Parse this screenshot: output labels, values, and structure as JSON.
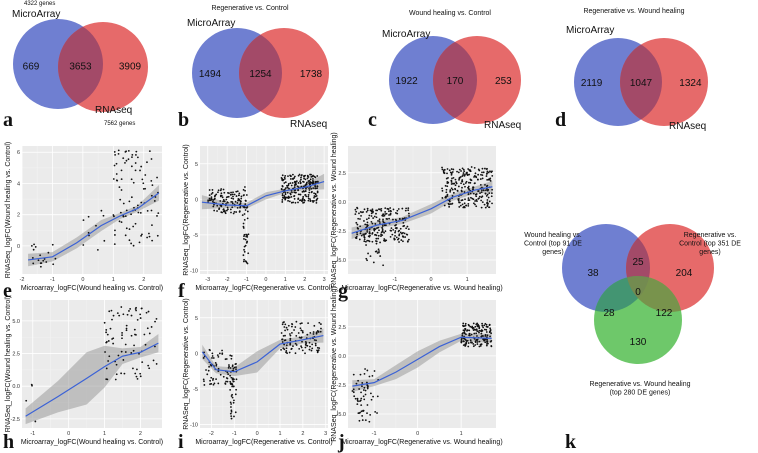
{
  "colors": {
    "microarray": "#6f7fd1",
    "rnaseq": "#e66a6a",
    "overlap": "#a34a68",
    "green": "#5ec25a",
    "fit": "#3b62d6"
  },
  "panel_letters": [
    "a",
    "b",
    "c",
    "d",
    "e",
    "f",
    "g",
    "h",
    "i",
    "j",
    "k"
  ],
  "chart_data": [
    {
      "type": "venn",
      "panel": "a",
      "title": "",
      "sets": [
        {
          "name": "MicroArray",
          "note": "4322 genes",
          "only": 669
        },
        {
          "name": "RNAseq",
          "note": "7562 genes",
          "only": 3909
        }
      ],
      "intersection": 3653
    },
    {
      "type": "venn",
      "panel": "b",
      "title": "Regenerative vs. Control",
      "sets": [
        {
          "name": "MicroArray",
          "only": 1494
        },
        {
          "name": "RNAseq",
          "only": 1738
        }
      ],
      "intersection": 1254
    },
    {
      "type": "venn",
      "panel": "c",
      "title": "Wound healing vs. Control",
      "sets": [
        {
          "name": "MicroArray",
          "only": 1922
        },
        {
          "name": "RNAseq",
          "only": 253
        }
      ],
      "intersection": 170
    },
    {
      "type": "venn",
      "panel": "d",
      "title": "Regenerative vs. Wound healing",
      "sets": [
        {
          "name": "MicroArray",
          "only": 2119
        },
        {
          "name": "RNAseq",
          "only": 1324
        }
      ],
      "intersection": 1047
    },
    {
      "type": "scatter",
      "panel": "e",
      "xlabel": "Microarray_logFC(Wound healing vs. Control)",
      "ylabel": "RNASeq_logFC(Wound healing vs. Control)",
      "xlim": [
        -2,
        2.6
      ],
      "ylim": [
        -1.8,
        6.4
      ],
      "xticks": [
        -2,
        -1,
        0,
        1,
        2
      ],
      "yticks": [
        0,
        2,
        4,
        6
      ],
      "tick_labels_x": [
        "-2",
        "-1",
        "0",
        "1",
        "2"
      ],
      "tick_labels_y": [
        "0",
        "2",
        "4",
        "6"
      ],
      "clusters": [
        {
          "x": [
            -1.7,
            -0.9
          ],
          "y": [
            -1.4,
            0.2
          ],
          "n": 18
        },
        {
          "x": [
            -0.2,
            0.8
          ],
          "y": [
            -0.5,
            2.5
          ],
          "n": 10
        },
        {
          "x": [
            1.0,
            2.5
          ],
          "y": [
            0.0,
            6.2
          ],
          "n": 95
        }
      ],
      "fit": {
        "x": [
          -1.8,
          -1.0,
          -0.2,
          0.6,
          1.2,
          1.8,
          2.5
        ],
        "y": [
          -0.9,
          -0.7,
          0.2,
          1.3,
          1.9,
          2.4,
          3.4
        ]
      },
      "band_width": [
        0.4,
        0.3,
        0.35,
        0.35,
        0.2,
        0.2,
        0.5
      ]
    },
    {
      "type": "scatter",
      "panel": "f",
      "xlabel": "Microarray_logFC(Regenerative vs. Control)",
      "ylabel": "RNASeq_logFC(Regenerative vs. Control)",
      "xlim": [
        -3.4,
        3.2
      ],
      "ylim": [
        -10.5,
        7.5
      ],
      "xticks": [
        -3,
        -2,
        -1,
        0,
        1,
        2,
        3
      ],
      "yticks": [
        -10,
        -5,
        0,
        5
      ],
      "tick_labels_x": [
        "-3",
        "-2",
        "-1",
        "0",
        "1",
        "2",
        "3"
      ],
      "tick_labels_y": [
        "-10",
        "-5",
        "0",
        "5"
      ],
      "clusters": [
        {
          "x": [
            -3.0,
            -1.0
          ],
          "y": [
            -2.0,
            1.5
          ],
          "n": 120
        },
        {
          "x": [
            -1.2,
            -0.9
          ],
          "y": [
            -9.5,
            2.5
          ],
          "n": 45
        },
        {
          "x": [
            0.8,
            2.7
          ],
          "y": [
            -0.5,
            3.5
          ],
          "n": 230
        }
      ],
      "fit": {
        "x": [
          -3.3,
          -2.0,
          -1.0,
          0.0,
          1.0,
          2.0,
          3.0
        ],
        "y": [
          -0.4,
          -0.8,
          -0.9,
          0.5,
          1.2,
          1.7,
          2.5
        ]
      },
      "band_width": [
        1.0,
        0.4,
        0.4,
        0.5,
        0.3,
        0.4,
        1.1
      ]
    },
    {
      "type": "scatter",
      "panel": "g",
      "xlabel": "Microarray_logFC(Regenerative vs. Wound healing)",
      "ylabel": "RNASeq_logFC(Regenerative vs. Wound healing)",
      "xlim": [
        -2.3,
        1.8
      ],
      "ylim": [
        -6.2,
        4.8
      ],
      "xticks": [
        -1,
        0,
        1
      ],
      "yticks": [
        -5.0,
        -2.5,
        0.0,
        2.5
      ],
      "tick_labels_x": [
        "-1",
        "0",
        "1"
      ],
      "tick_labels_y": [
        "-5.0",
        "-2.5",
        "0.0",
        "2.5"
      ],
      "clusters": [
        {
          "x": [
            -2.1,
            -0.6
          ],
          "y": [
            -3.5,
            -0.5
          ],
          "n": 220
        },
        {
          "x": [
            -1.8,
            -1.3
          ],
          "y": [
            -5.5,
            -2.0
          ],
          "n": 30
        },
        {
          "x": [
            0.3,
            1.7
          ],
          "y": [
            -0.5,
            3.0
          ],
          "n": 260
        }
      ],
      "fit": {
        "x": [
          -2.2,
          -1.5,
          -0.8,
          0.0,
          0.6,
          1.2,
          1.7
        ],
        "y": [
          -2.7,
          -2.0,
          -1.6,
          -0.6,
          0.4,
          1.0,
          1.3
        ]
      },
      "band_width": [
        0.5,
        0.3,
        0.3,
        0.4,
        0.3,
        0.3,
        0.5
      ]
    },
    {
      "type": "scatter",
      "panel": "h",
      "xlabel": "Microarray_logFC(Wound healing vs. Control)",
      "ylabel": "RNASeq_logFC(Wound healing vs. Control)",
      "xlim": [
        -1.3,
        2.6
      ],
      "ylim": [
        -3.2,
        6.6
      ],
      "xticks": [
        -1,
        0,
        1,
        2
      ],
      "yticks": [
        -2.5,
        0.0,
        2.5,
        5.0
      ],
      "tick_labels_x": [
        "-1",
        "0",
        "1",
        "2"
      ],
      "tick_labels_y": [
        "-2.5",
        "0.0",
        "2.5",
        "5.0"
      ],
      "clusters": [
        {
          "x": [
            -1.2,
            -0.9
          ],
          "y": [
            -2.8,
            1.5
          ],
          "n": 4
        },
        {
          "x": [
            1.0,
            2.5
          ],
          "y": [
            0.5,
            6.2
          ],
          "n": 85
        }
      ],
      "fit": {
        "x": [
          -1.2,
          -0.3,
          0.5,
          1.0,
          1.5,
          2.0,
          2.5
        ],
        "y": [
          -2.3,
          -0.8,
          0.6,
          1.5,
          2.3,
          2.6,
          3.3
        ]
      },
      "band_width": [
        0.6,
        1.2,
        2.0,
        1.6,
        0.6,
        0.4,
        0.7
      ]
    },
    {
      "type": "scatter",
      "panel": "i",
      "xlabel": "Microarray_logFC(Regenerative vs. Control)",
      "ylabel": "RNASeq_logFC(Regenerative vs. Control)",
      "xlim": [
        -2.5,
        3.1
      ],
      "ylim": [
        -10.5,
        7.5
      ],
      "xticks": [
        -2,
        -1,
        0,
        1,
        2,
        3
      ],
      "yticks": [
        -10,
        -5,
        0,
        5
      ],
      "tick_labels_x": [
        "-2",
        "-1",
        "0",
        "1",
        "2",
        "3"
      ],
      "tick_labels_y": [
        "-10",
        "-5",
        "0",
        "5"
      ],
      "clusters": [
        {
          "x": [
            -2.4,
            -1.0
          ],
          "y": [
            -4.5,
            0.5
          ],
          "n": 70
        },
        {
          "x": [
            -1.2,
            -0.9
          ],
          "y": [
            -9.5,
            -1.0
          ],
          "n": 40
        },
        {
          "x": [
            1.0,
            2.8
          ],
          "y": [
            0.0,
            4.5
          ],
          "n": 110
        }
      ],
      "fit": {
        "x": [
          -2.4,
          -1.8,
          -1.0,
          0.0,
          1.0,
          2.0,
          2.9
        ],
        "y": [
          0.2,
          -2.3,
          -2.6,
          -1.2,
          1.3,
          1.9,
          2.5
        ]
      },
      "band_width": [
        1.0,
        0.5,
        0.6,
        1.5,
        0.6,
        0.5,
        1.0
      ]
    },
    {
      "type": "scatter",
      "panel": "j",
      "xlabel": "Microarray_logFC(Regenerative vs. Wound healing)",
      "ylabel": "RNASeq_logFC(Regenerative vs. Wound healing)",
      "xlim": [
        -1.6,
        1.8
      ],
      "ylim": [
        -6.2,
        4.8
      ],
      "xticks": [
        -1,
        0,
        1
      ],
      "yticks": [
        -5.0,
        -2.5,
        0.0,
        2.5
      ],
      "tick_labels_x": [
        "-1",
        "0",
        "1"
      ],
      "tick_labels_y": [
        "-5.0",
        "-2.5",
        "0.0",
        "2.5"
      ],
      "clusters": [
        {
          "x": [
            -1.5,
            -0.9
          ],
          "y": [
            -5.8,
            -1.0
          ],
          "n": 60
        },
        {
          "x": [
            1.0,
            1.7
          ],
          "y": [
            0.8,
            2.8
          ],
          "n": 160
        }
      ],
      "fit": {
        "x": [
          -1.5,
          -1.0,
          -0.5,
          0.0,
          0.5,
          1.0,
          1.7
        ],
        "y": [
          -2.6,
          -2.3,
          -1.4,
          -0.3,
          0.8,
          1.6,
          1.5
        ]
      },
      "band_width": [
        0.5,
        0.3,
        0.6,
        0.7,
        0.5,
        0.3,
        0.4
      ]
    },
    {
      "type": "venn3",
      "panel": "k",
      "sets": [
        {
          "name": "Wound healing vs. Control (top 91 DE genes)",
          "lines": [
            "Wound healing vs.",
            "Control (top 91 DE",
            "genes)"
          ],
          "only": 38
        },
        {
          "name": "Regenerative vs. Control (top 351 DE genes)",
          "lines": [
            "Regenerative vs.",
            "Control (top 351 DE",
            "genes)"
          ],
          "only": 204
        },
        {
          "name": "Regenerative vs. Wound healing (top 280 DE genes)",
          "lines": [
            "Regenerative vs. Wound healing",
            "(top 280 DE genes)"
          ],
          "only": 130
        }
      ],
      "pairs": {
        "ab": 25,
        "ac": 28,
        "bc": 122
      },
      "abc": 0
    }
  ]
}
